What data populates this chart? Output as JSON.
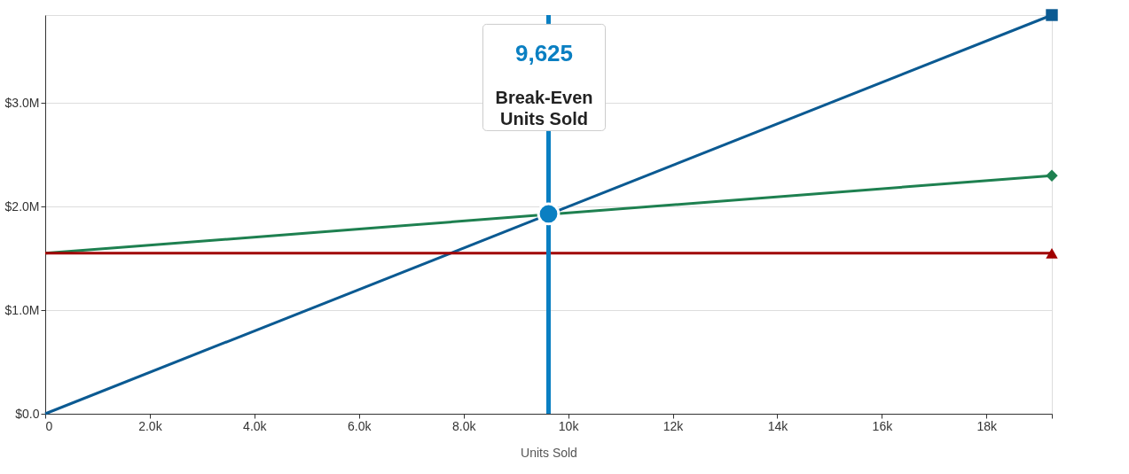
{
  "chart_data": {
    "type": "line",
    "xlabel": "Units Sold",
    "x": [
      0,
      19250
    ],
    "series": [
      {
        "color": "#0b5a92",
        "values": [
          0,
          3850000
        ],
        "marker": "square"
      },
      {
        "color": "#1e8050",
        "values": [
          1550000,
          2300000
        ],
        "marker": "diamond"
      },
      {
        "color": "#a00000",
        "values": [
          1550000,
          1550000
        ],
        "marker": "triangle"
      },
      {
        "type": "scatter",
        "color": "#0a7fc2",
        "x": [
          9625
        ],
        "values": [
          1930000
        ],
        "marker": "circle"
      }
    ],
    "xlim": [
      0,
      19250
    ],
    "xticks": [
      0,
      {
        "value": 2000,
        "label": "2.0k"
      },
      {
        "value": 4000,
        "label": "4.0k"
      },
      {
        "value": 6000,
        "label": "6.0k"
      },
      {
        "value": 8000,
        "label": "8.0k"
      },
      {
        "value": 10000,
        "label": "10k"
      },
      {
        "value": 12000,
        "label": "12k"
      },
      {
        "value": 14000,
        "label": "14k"
      },
      {
        "value": 16000,
        "label": "16k"
      },
      {
        "value": 18000,
        "label": "18k"
      },
      {
        "value": 19250,
        "label": null
      }
    ],
    "ylim": [
      0,
      3850000
    ],
    "yticks": [
      {
        "value": 0,
        "label": "$0.0"
      },
      {
        "value": 1000000,
        "label": "$1.0M"
      },
      {
        "value": 2000000,
        "label": "$2.0M"
      },
      {
        "value": 3000000,
        "label": "$3.0M"
      }
    ],
    "grid": "y",
    "line_style": "solid",
    "ref_lines": [
      {
        "axis": "x",
        "value": 9625,
        "color": "#0a7fc2"
      }
    ],
    "annotations": [
      "9,625",
      "Break-Even\nUnits Sold"
    ]
  }
}
